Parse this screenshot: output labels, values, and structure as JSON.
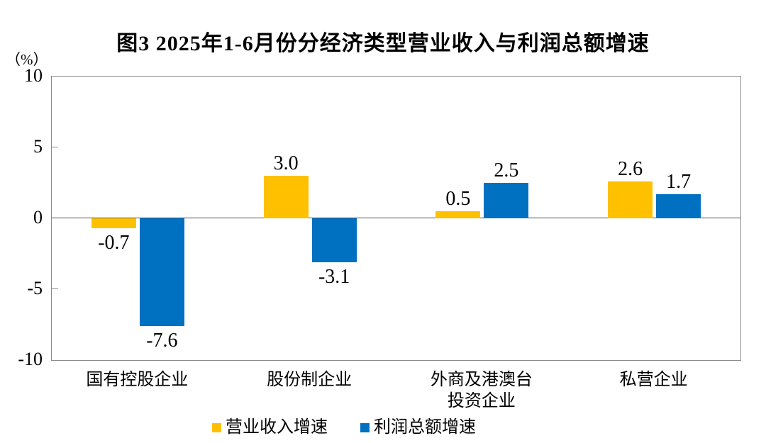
{
  "chart_data": {
    "type": "bar",
    "title": "图3  2025年1-6月份分经济类型营业收入与利润总额增速",
    "ylabel": "（%）",
    "categories": [
      "国有控股企业",
      "股份制企业",
      "外商及港澳台\n投资企业",
      "私营企业"
    ],
    "series": [
      {
        "name": "营业收入增速",
        "color": "#FFC000",
        "values": [
          -0.7,
          3.0,
          0.5,
          2.6
        ]
      },
      {
        "name": "利润总额增速",
        "color": "#0070C0",
        "values": [
          -7.6,
          -3.1,
          2.5,
          1.7
        ]
      }
    ],
    "ylim": [
      -10,
      10
    ],
    "yticks": [
      10,
      5,
      0,
      -5,
      -10
    ],
    "grid": false,
    "legend_position": "bottom",
    "value_label_decimals": 1,
    "axis_color": "#8a8a8a",
    "zero_line_color": "#4d4d4d"
  }
}
